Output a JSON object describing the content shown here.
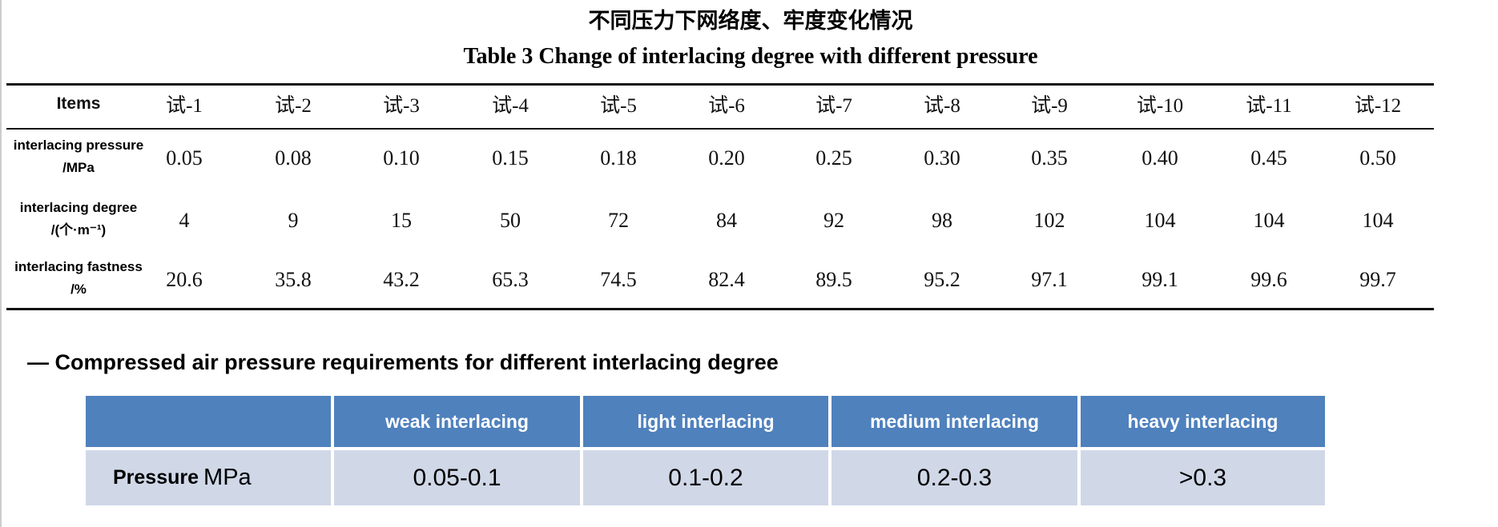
{
  "header": {
    "title_cn": "不同压力下网络度、牢度变化情况",
    "title_en": "Table 3 Change of interlacing degree with different pressure"
  },
  "table": {
    "columns": [
      "Items",
      "试-1",
      "试-2",
      "试-3",
      "试-4",
      "试-5",
      "试-6",
      "试-7",
      "试-8",
      "试-9",
      "试-10",
      "试-11",
      "试-12"
    ],
    "rows": [
      {
        "label": [
          "interlacing pressure",
          "/MPa"
        ],
        "values": [
          "0.05",
          "0.08",
          "0.10",
          "0.15",
          "0.18",
          "0.20",
          "0.25",
          "0.30",
          "0.35",
          "0.40",
          "0.45",
          "0.50"
        ]
      },
      {
        "label": [
          "interlacing degree",
          "/(个·m⁻¹)"
        ],
        "values": [
          "4",
          "9",
          "15",
          "50",
          "72",
          "84",
          "92",
          "98",
          "102",
          "104",
          "104",
          "104"
        ]
      },
      {
        "label": [
          "interlacing fastness",
          "/%"
        ],
        "values": [
          "20.6",
          "35.8",
          "43.2",
          "65.3",
          "74.5",
          "82.4",
          "89.5",
          "95.2",
          "97.1",
          "99.1",
          "99.6",
          "99.7"
        ]
      }
    ]
  },
  "section": {
    "heading": "Compressed air pressure requirements for different interlacing degree"
  },
  "table2": {
    "columns": [
      "weak interlacing",
      "light interlacing",
      "medium interlacing",
      "heavy interlacing"
    ],
    "row_label": "Pressure",
    "row_unit": "MPa",
    "values": [
      "0.05-0.1",
      "0.1-0.2",
      "0.2-0.3",
      ">0.3"
    ]
  }
}
